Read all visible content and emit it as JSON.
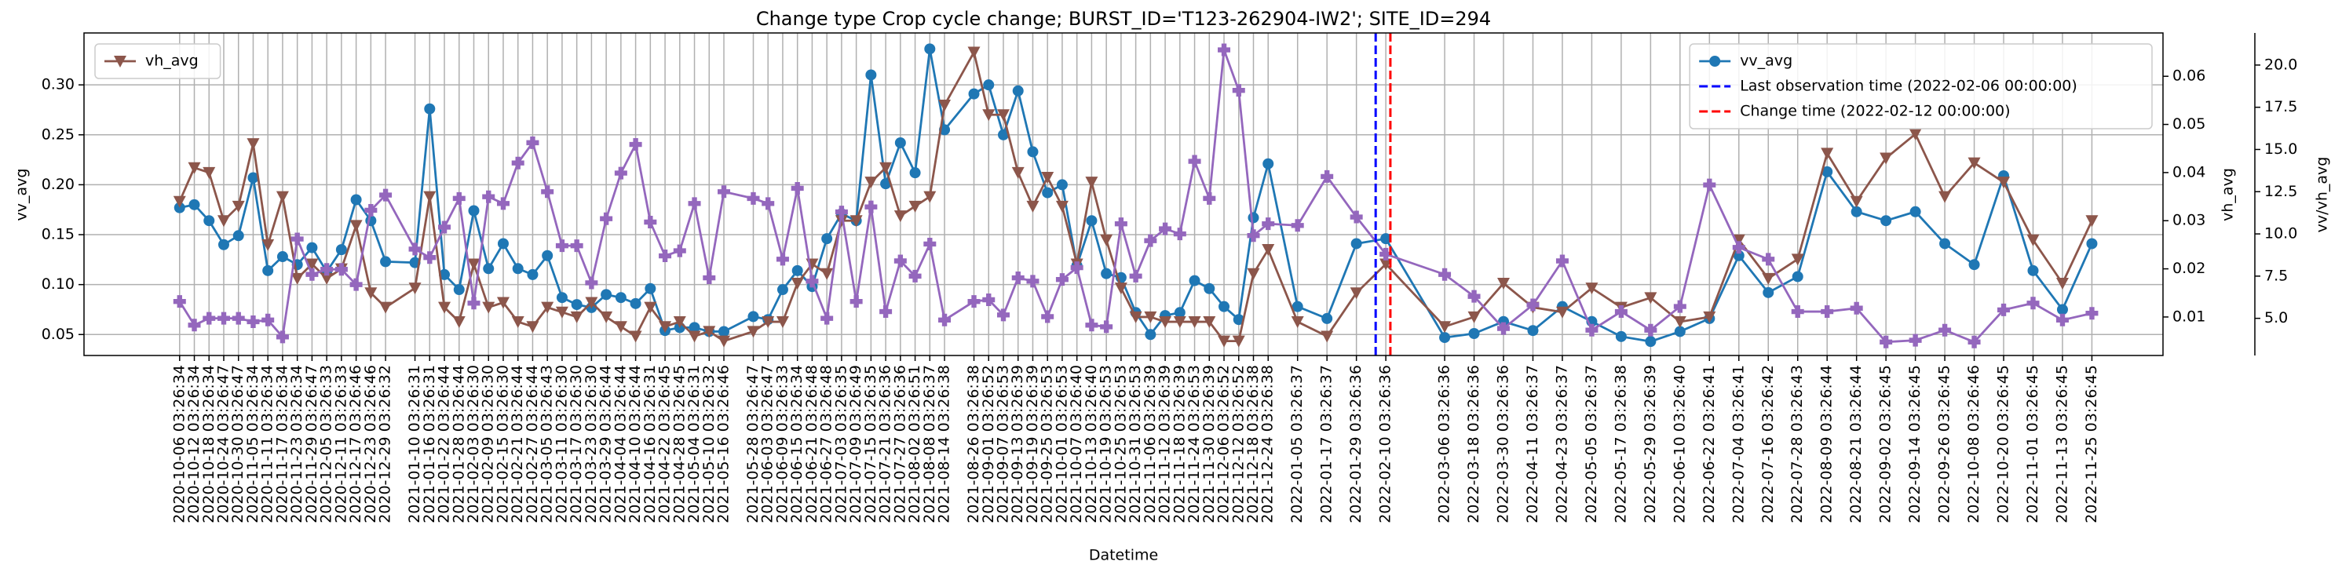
{
  "chart_data": {
    "type": "line",
    "title": "Change type Crop cycle change; BURST_ID='T123-262904-IW2'; SITE_ID=294",
    "xlabel": "Datetime",
    "ylabel": "vv_avg",
    "y2label": "vh_avg",
    "y3label": "vv/vh_avg",
    "x": [
      "2020-10-06 03:26:34",
      "2020-10-12 03:26:34",
      "2020-10-18 03:26:34",
      "2020-10-24 03:26:47",
      "2020-10-30 03:26:47",
      "2020-11-05 03:26:34",
      "2020-11-11 03:26:34",
      "2020-11-17 03:26:34",
      "2020-11-23 03:26:34",
      "2020-11-29 03:26:47",
      "2020-12-05 03:26:33",
      "2020-12-11 03:26:33",
      "2020-12-17 03:26:46",
      "2020-12-23 03:26:46",
      "2020-12-29 03:26:32",
      "2021-01-10 03:26:31",
      "2021-01-16 03:26:31",
      "2021-01-22 03:26:44",
      "2021-01-28 03:26:44",
      "2021-02-03 03:26:30",
      "2021-02-09 03:26:30",
      "2021-02-15 03:26:30",
      "2021-02-21 03:26:44",
      "2021-02-27 03:26:44",
      "2021-03-05 03:26:43",
      "2021-03-11 03:26:30",
      "2021-03-17 03:26:30",
      "2021-03-23 03:26:30",
      "2021-03-29 03:26:44",
      "2021-04-04 03:26:44",
      "2021-04-10 03:26:44",
      "2021-04-16 03:26:31",
      "2021-04-22 03:26:45",
      "2021-04-28 03:26:45",
      "2021-05-04 03:26:31",
      "2021-05-10 03:26:32",
      "2021-05-16 03:26:46",
      "2021-05-28 03:26:47",
      "2021-06-03 03:26:47",
      "2021-06-09 03:26:33",
      "2021-06-15 03:26:34",
      "2021-06-21 03:26:48",
      "2021-06-27 03:26:48",
      "2021-07-03 03:26:35",
      "2021-07-09 03:26:49",
      "2021-07-15 03:26:35",
      "2021-07-21 03:26:36",
      "2021-07-27 03:26:36",
      "2021-08-02 03:26:51",
      "2021-08-08 03:26:37",
      "2021-08-14 03:26:38",
      "2021-08-26 03:26:38",
      "2021-09-01 03:26:52",
      "2021-09-07 03:26:53",
      "2021-09-13 03:26:39",
      "2021-09-19 03:26:39",
      "2021-09-25 03:26:53",
      "2021-10-01 03:26:53",
      "2021-10-07 03:26:40",
      "2021-10-13 03:26:40",
      "2021-10-19 03:26:53",
      "2021-10-25 03:26:53",
      "2021-10-31 03:26:53",
      "2021-11-06 03:26:39",
      "2021-11-12 03:26:39",
      "2021-11-18 03:26:39",
      "2021-11-24 03:26:53",
      "2021-11-30 03:26:39",
      "2021-12-06 03:26:52",
      "2021-12-12 03:26:52",
      "2021-12-18 03:26:38",
      "2021-12-24 03:26:38",
      "2022-01-05 03:26:37",
      "2022-01-17 03:26:37",
      "2022-01-29 03:26:36",
      "2022-02-10 03:26:36",
      "2022-03-06 03:26:36",
      "2022-03-18 03:26:36",
      "2022-03-30 03:26:36",
      "2022-04-11 03:26:37",
      "2022-04-23 03:26:37",
      "2022-05-05 03:26:37",
      "2022-05-17 03:26:38",
      "2022-05-29 03:26:39",
      "2022-06-10 03:26:40",
      "2022-06-22 03:26:41",
      "2022-07-04 03:26:41",
      "2022-07-16 03:26:42",
      "2022-07-28 03:26:43",
      "2022-08-09 03:26:44",
      "2022-08-21 03:26:44",
      "2022-09-02 03:26:45",
      "2022-09-14 03:26:45",
      "2022-09-26 03:26:45",
      "2022-10-08 03:26:46",
      "2022-10-20 03:26:45",
      "2022-11-01 03:26:45",
      "2022-11-13 03:26:45",
      "2022-11-25 03:26:45"
    ],
    "xlim": [
      "2020-08-28 03:26:34",
      "2022-12-24 03:26:45"
    ],
    "series": [
      {
        "name": "vv_avg",
        "color": "#1f77b4",
        "marker": "circle",
        "values": [
          0.177,
          0.18,
          0.164,
          0.14,
          0.149,
          0.207,
          0.114,
          0.128,
          0.12,
          0.137,
          0.113,
          0.135,
          0.185,
          0.164,
          0.123,
          0.122,
          0.276,
          0.11,
          0.095,
          0.174,
          0.116,
          0.141,
          0.116,
          0.11,
          0.129,
          0.087,
          0.08,
          0.077,
          0.09,
          0.087,
          0.081,
          0.096,
          0.054,
          0.057,
          0.057,
          0.053,
          0.053,
          0.068,
          0.065,
          0.095,
          0.114,
          0.098,
          0.146,
          0.171,
          0.164,
          0.31,
          0.201,
          0.242,
          0.212,
          0.336,
          0.255,
          0.291,
          0.3,
          0.25,
          0.294,
          0.233,
          0.192,
          0.2,
          0.119,
          0.164,
          0.111,
          0.107,
          0.072,
          0.05,
          0.069,
          0.072,
          0.104,
          0.096,
          0.078,
          0.065,
          0.167,
          0.221,
          0.078,
          0.066,
          0.141,
          0.146,
          0.047,
          0.051,
          0.063,
          0.054,
          0.078,
          0.063,
          0.048,
          0.043,
          0.053,
          0.066,
          0.129,
          0.092,
          0.108,
          0.213,
          0.173,
          0.164,
          0.173,
          0.141,
          0.12,
          0.209,
          0.114,
          0.075,
          0.141
        ]
      },
      {
        "name": "vh_avg",
        "axis": "y2",
        "color": "#8c564b",
        "marker": "triangle-down",
        "values": [
          0.034,
          0.041,
          0.04,
          0.03,
          0.033,
          0.046,
          0.025,
          0.035,
          0.018,
          0.021,
          0.018,
          0.02,
          0.029,
          0.015,
          0.012,
          0.016,
          0.035,
          0.012,
          0.009,
          0.021,
          0.012,
          0.013,
          0.009,
          0.008,
          0.012,
          0.011,
          0.01,
          0.013,
          0.01,
          0.008,
          0.006,
          0.012,
          0.008,
          0.009,
          0.006,
          0.007,
          0.005,
          0.007,
          0.009,
          0.009,
          0.017,
          0.021,
          0.019,
          0.03,
          0.03,
          0.038,
          0.041,
          0.031,
          0.033,
          0.035,
          0.054,
          0.065,
          0.052,
          0.052,
          0.04,
          0.033,
          0.039,
          0.033,
          0.021,
          0.038,
          0.026,
          0.016,
          0.01,
          0.01,
          0.009,
          0.009,
          0.009,
          0.009,
          0.005,
          0.005,
          0.019,
          0.024,
          0.009,
          0.006,
          0.015,
          0.021,
          0.008,
          0.01,
          0.017,
          0.012,
          0.011,
          0.016,
          0.012,
          0.014,
          0.009,
          0.01,
          0.026,
          0.018,
          0.022,
          0.044,
          0.034,
          0.043,
          0.048,
          0.035,
          0.042,
          0.038,
          0.026,
          0.017,
          0.03
        ]
      },
      {
        "axis": "y3",
        "color": "#9467bd",
        "marker": "plus",
        "values": [
          6.0,
          4.6,
          5.0,
          5.0,
          5.0,
          4.8,
          4.9,
          3.9,
          9.7,
          7.6,
          7.9,
          7.9,
          7.0,
          11.4,
          12.3,
          9.1,
          8.6,
          10.4,
          12.1,
          5.9,
          12.2,
          11.8,
          14.2,
          15.4,
          12.5,
          9.3,
          9.3,
          7.1,
          10.9,
          13.6,
          15.3,
          10.7,
          8.7,
          9.0,
          11.8,
          7.4,
          12.5,
          12.1,
          11.8,
          8.5,
          12.7,
          7.2,
          5.0,
          11.3,
          6.0,
          11.6,
          5.4,
          8.4,
          7.5,
          9.4,
          4.9,
          6.0,
          6.1,
          5.2,
          7.4,
          7.2,
          5.1,
          7.3,
          8.0,
          4.6,
          4.5,
          10.6,
          7.5,
          9.6,
          10.3,
          10.0,
          14.3,
          12.1,
          20.9,
          18.5,
          9.9,
          10.6,
          10.5,
          13.4,
          11.0,
          8.8,
          7.6,
          6.3,
          4.4,
          5.8,
          8.4,
          4.3,
          5.4,
          4.3,
          5.7,
          12.9,
          9.2,
          8.5,
          5.4,
          5.4,
          5.6,
          3.6,
          3.7,
          4.3,
          3.6,
          5.5,
          5.9,
          4.9,
          5.3
        ]
      }
    ],
    "vlines": [
      {
        "name": "Last observation time (2022-02-06 00:00:00)",
        "x": "2022-02-06 00:00:00",
        "color": "#0000ff"
      },
      {
        "name": "Change time (2022-02-12 00:00:00)",
        "x": "2022-02-12 00:00:00",
        "color": "#ff0000"
      }
    ],
    "ylim": [
      0.029,
      0.352
    ],
    "yticks": [
      0.05,
      {
        "value": 0.1,
        "label": "0.10"
      },
      0.15,
      {
        "value": 0.2,
        "label": "0.20"
      },
      0.25,
      {
        "value": 0.3,
        "label": "0.30"
      }
    ],
    "y2lim": [
      0.002,
      0.069
    ],
    "y2ticks": [
      0.01,
      0.02,
      0.03,
      0.04,
      0.05,
      0.06
    ],
    "y3lim": [
      2.8,
      21.9
    ],
    "y3ticks": [
      {
        "value": 5,
        "label": "5.0"
      },
      7.5,
      {
        "value": 10,
        "label": "10.0"
      },
      12.5,
      {
        "value": 15,
        "label": "15.0"
      },
      17.5,
      {
        "value": 20,
        "label": "20.0"
      }
    ],
    "grid": true,
    "legend_loc": "upper right",
    "y2_legend_loc": "upper left"
  }
}
